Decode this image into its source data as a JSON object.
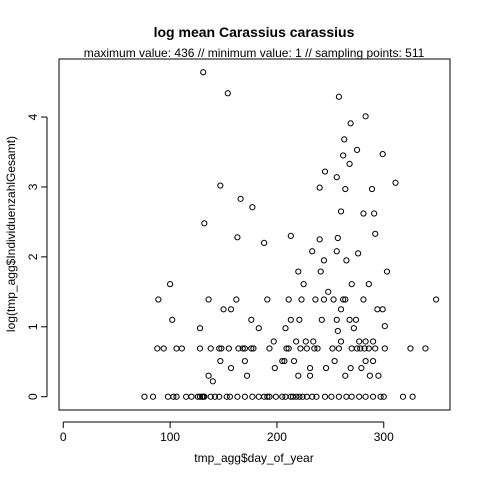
{
  "chart_data": {
    "type": "scatter",
    "title": "log mean Carassius carassius",
    "subtitle": "maximum value: 436  //  minimum value: 1  // sampling points: 511",
    "xlabel": "tmp_agg$day_of_year",
    "ylabel": "log(tmp_agg$IndividuenzahlGesamt)",
    "xlim": [
      -4,
      362
    ],
    "ylim": [
      -0.19,
      4.83
    ],
    "xticks": [
      "0",
      "100",
      "200",
      "300"
    ],
    "yticks": [
      "0",
      "1",
      "2",
      "3",
      "4"
    ],
    "grid": false,
    "legend": "none",
    "points": [
      [
        76,
        0
      ],
      [
        84,
        0
      ],
      [
        98,
        0
      ],
      [
        103,
        0
      ],
      [
        106,
        0
      ],
      [
        115,
        0
      ],
      [
        120,
        0
      ],
      [
        126,
        0
      ],
      [
        128,
        0
      ],
      [
        130,
        0
      ],
      [
        131,
        0
      ],
      [
        132,
        0
      ],
      [
        138,
        0
      ],
      [
        142,
        0
      ],
      [
        146,
        0
      ],
      [
        153,
        0
      ],
      [
        156,
        0
      ],
      [
        163,
        0
      ],
      [
        170,
        0
      ],
      [
        177,
        0
      ],
      [
        183,
        0
      ],
      [
        188,
        0
      ],
      [
        191,
        0
      ],
      [
        193,
        0
      ],
      [
        199,
        0
      ],
      [
        205,
        0
      ],
      [
        208,
        0
      ],
      [
        213,
        0
      ],
      [
        215,
        0
      ],
      [
        218,
        0
      ],
      [
        221,
        0
      ],
      [
        224,
        0
      ],
      [
        228,
        0
      ],
      [
        233,
        0
      ],
      [
        237,
        0
      ],
      [
        245,
        0
      ],
      [
        251,
        0
      ],
      [
        258,
        0
      ],
      [
        265,
        0
      ],
      [
        270,
        0
      ],
      [
        277,
        0
      ],
      [
        283,
        0
      ],
      [
        290,
        0
      ],
      [
        297,
        0
      ],
      [
        300,
        0
      ],
      [
        318,
        0
      ],
      [
        327,
        0
      ],
      [
        140,
        0.22
      ],
      [
        136,
        0.3
      ],
      [
        172,
        0.3
      ],
      [
        220,
        0.3
      ],
      [
        231,
        0.3
      ],
      [
        264,
        0.3
      ],
      [
        287,
        0.3
      ],
      [
        295,
        0.3
      ],
      [
        157,
        0.41
      ],
      [
        198,
        0.41
      ],
      [
        269,
        0.41
      ],
      [
        279,
        0.41
      ],
      [
        231,
        0.41
      ],
      [
        246,
        0.41
      ],
      [
        147,
        0.51
      ],
      [
        170,
        0.51
      ],
      [
        205,
        0.51
      ],
      [
        207,
        0.51
      ],
      [
        216,
        0.51
      ],
      [
        254,
        0.51
      ],
      [
        283,
        0.51
      ],
      [
        290,
        0.51
      ],
      [
        138,
        0.69
      ],
      [
        146,
        0.69
      ],
      [
        148,
        0.69
      ],
      [
        155,
        0.69
      ],
      [
        164,
        0.69
      ],
      [
        168,
        0.69
      ],
      [
        170,
        0.69
      ],
      [
        176,
        0.69
      ],
      [
        178,
        0.69
      ],
      [
        193,
        0.69
      ],
      [
        209,
        0.69
      ],
      [
        211,
        0.69
      ],
      [
        222,
        0.69
      ],
      [
        228,
        0.69
      ],
      [
        235,
        0.69
      ],
      [
        238,
        0.69
      ],
      [
        252,
        0.69
      ],
      [
        258,
        0.69
      ],
      [
        270,
        0.69
      ],
      [
        275,
        0.69
      ],
      [
        278,
        0.69
      ],
      [
        282,
        0.69
      ],
      [
        286,
        0.69
      ],
      [
        292,
        0.69
      ],
      [
        301,
        0.69
      ],
      [
        325,
        0.69
      ],
      [
        339,
        0.69
      ],
      [
        88,
        0.69
      ],
      [
        94,
        0.69
      ],
      [
        106,
        0.69
      ],
      [
        111,
        0.69
      ],
      [
        128,
        0.69
      ],
      [
        197,
        0.79
      ],
      [
        218,
        0.79
      ],
      [
        227,
        0.79
      ],
      [
        234,
        0.79
      ],
      [
        260,
        0.79
      ],
      [
        277,
        0.79
      ],
      [
        283,
        0.79
      ],
      [
        290,
        0.79
      ],
      [
        128,
        0.98
      ],
      [
        183,
        0.98
      ],
      [
        208,
        0.98
      ],
      [
        257,
        0.94
      ],
      [
        272,
        0.98
      ],
      [
        301,
        1.01
      ],
      [
        102,
        1.1
      ],
      [
        176,
        1.1
      ],
      [
        213,
        1.1
      ],
      [
        221,
        1.1
      ],
      [
        242,
        1.1
      ],
      [
        256,
        1.1
      ],
      [
        268,
        1.1
      ],
      [
        274,
        1.1
      ],
      [
        150,
        1.25
      ],
      [
        157,
        1.25
      ],
      [
        260,
        1.25
      ],
      [
        294,
        1.25
      ],
      [
        299,
        1.25
      ],
      [
        89,
        1.39
      ],
      [
        136,
        1.39
      ],
      [
        162,
        1.39
      ],
      [
        191,
        1.39
      ],
      [
        211,
        1.39
      ],
      [
        223,
        1.39
      ],
      [
        236,
        1.39
      ],
      [
        244,
        1.39
      ],
      [
        253,
        1.39
      ],
      [
        262,
        1.39
      ],
      [
        264,
        1.39
      ],
      [
        281,
        1.39
      ],
      [
        349,
        1.39
      ],
      [
        100,
        1.61
      ],
      [
        225,
        1.61
      ],
      [
        270,
        1.61
      ],
      [
        248,
        1.5
      ],
      [
        220,
        1.79
      ],
      [
        241,
        1.79
      ],
      [
        303,
        1.79
      ],
      [
        286,
        1.61
      ],
      [
        188,
        2.2
      ],
      [
        163,
        2.28
      ],
      [
        213,
        2.3
      ],
      [
        256,
        2.08
      ],
      [
        233,
        2.08
      ],
      [
        244,
        1.95
      ],
      [
        265,
        1.95
      ],
      [
        276,
        2.05
      ],
      [
        240,
        2.25
      ],
      [
        257,
        2.27
      ],
      [
        292,
        2.33
      ],
      [
        132,
        2.48
      ],
      [
        166,
        2.83
      ],
      [
        177,
        2.71
      ],
      [
        260,
        2.65
      ],
      [
        281,
        2.62
      ],
      [
        291,
        2.62
      ],
      [
        147,
        3.02
      ],
      [
        240,
        2.99
      ],
      [
        264,
        2.97
      ],
      [
        289,
        2.97
      ],
      [
        311,
        3.06
      ],
      [
        256,
        3.14
      ],
      [
        268,
        3.33
      ],
      [
        245,
        3.22
      ],
      [
        262,
        3.45
      ],
      [
        275,
        3.53
      ],
      [
        299,
        3.47
      ],
      [
        263,
        3.68
      ],
      [
        283,
        4.01
      ],
      [
        258,
        4.29
      ],
      [
        154,
        4.34
      ],
      [
        131,
        4.64
      ],
      [
        269,
        3.91
      ]
    ]
  }
}
